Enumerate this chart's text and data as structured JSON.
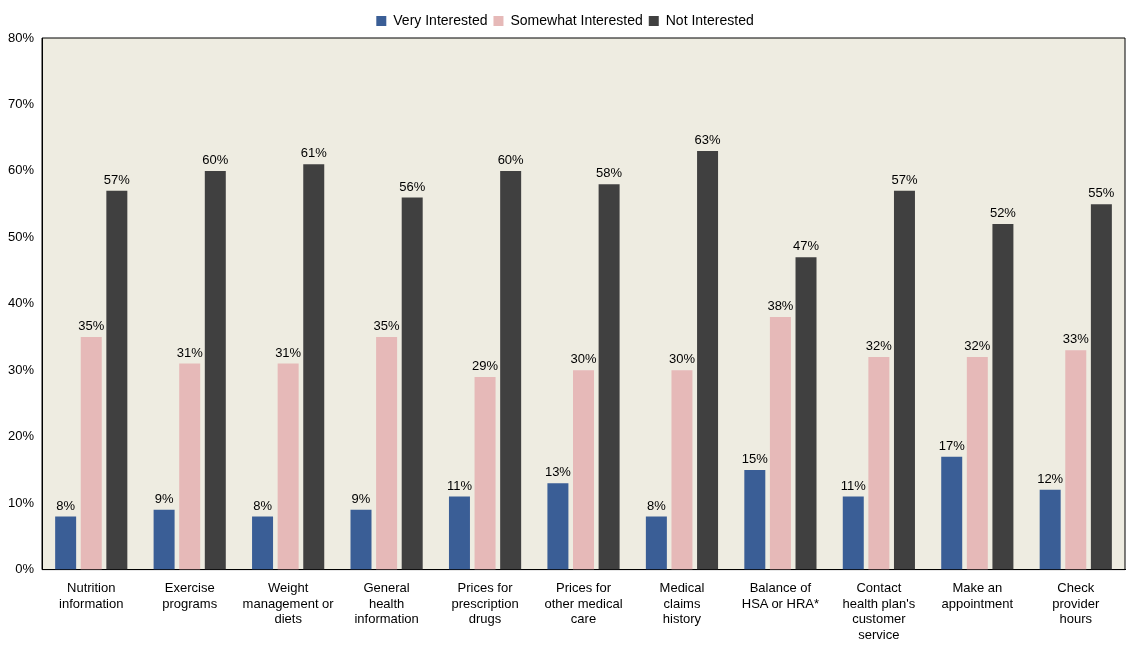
{
  "chart_data": {
    "type": "bar",
    "categories": [
      "Nutrition information",
      "Exercise programs",
      "Weight management or diets",
      "General health information",
      "Prices for prescription drugs",
      "Prices for other medical care",
      "Medical claims history",
      "Balance of HSA or HRA*",
      "Contact health plan's customer service",
      "Make an appointment",
      "Check provider hours"
    ],
    "series": [
      {
        "name": "Very Interested",
        "color": "#3a5e96",
        "values": [
          8,
          9,
          8,
          9,
          11,
          13,
          8,
          15,
          11,
          17,
          12
        ],
        "value_labels": [
          "8%",
          "9%",
          "8%",
          "9%",
          "11%",
          "13%",
          "8%",
          "15%",
          "11%",
          "17%",
          "12%"
        ]
      },
      {
        "name": "Somewhat Interested",
        "color": "#e6b9b8",
        "values": [
          35,
          31,
          31,
          35,
          29,
          30,
          30,
          38,
          32,
          32,
          33
        ],
        "value_labels": [
          "35%",
          "31%",
          "31%",
          "35%",
          "29%",
          "30%",
          "30%",
          "38%",
          "32%",
          "32%",
          "33%"
        ]
      },
      {
        "name": "Not Interested",
        "color": "#404040",
        "values": [
          57,
          60,
          61,
          56,
          60,
          58,
          63,
          47,
          57,
          52,
          55
        ],
        "value_labels": [
          "57%",
          "60%",
          "61%",
          "56%",
          "60%",
          "58%",
          "63%",
          "47%",
          "57%",
          "52%",
          "55%"
        ]
      }
    ],
    "ylim": [
      0,
      80
    ],
    "yticks": [
      {
        "value": 0,
        "label": "0%"
      },
      {
        "value": 10,
        "label": "10%"
      },
      {
        "value": 20,
        "label": "20%"
      },
      {
        "value": 30,
        "label": "30%"
      },
      {
        "value": 40,
        "label": "40%"
      },
      {
        "value": 50,
        "label": "50%"
      },
      {
        "value": 60,
        "label": "60%"
      },
      {
        "value": 70,
        "label": "70%"
      },
      {
        "value": 80,
        "label": "80%"
      }
    ],
    "grid": false,
    "legend": "top"
  }
}
